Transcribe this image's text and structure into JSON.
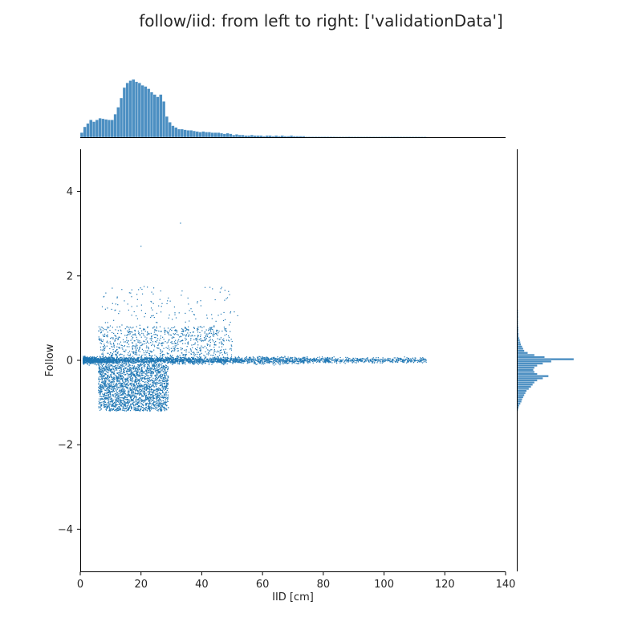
{
  "chart_data": {
    "type": "scatter",
    "title": "follow/iid: from left to right: ['validationData']",
    "xlabel": "IID [cm]",
    "ylabel": "Follow",
    "xlim": [
      0,
      140
    ],
    "ylim": [
      -5,
      5
    ],
    "x_ticks": [
      0,
      20,
      40,
      60,
      80,
      100,
      120,
      140
    ],
    "y_ticks": [
      -4,
      -2,
      0,
      2,
      4
    ],
    "x_tick_labels": [
      "0",
      "20",
      "40",
      "60",
      "80",
      "100",
      "120",
      "140"
    ],
    "y_tick_labels": [
      "−4",
      "−2",
      "0",
      "2",
      "4"
    ],
    "grid": false,
    "color": "#1f77b4",
    "marginal_x_histogram": {
      "bin_width": 1,
      "counts": [
        0.08,
        0.18,
        0.24,
        0.3,
        0.27,
        0.3,
        0.33,
        0.32,
        0.31,
        0.3,
        0.3,
        0.4,
        0.52,
        0.68,
        0.86,
        0.94,
        0.98,
        1.0,
        0.96,
        0.94,
        0.9,
        0.88,
        0.84,
        0.78,
        0.74,
        0.7,
        0.74,
        0.62,
        0.36,
        0.26,
        0.2,
        0.17,
        0.14,
        0.14,
        0.13,
        0.12,
        0.12,
        0.11,
        0.1,
        0.09,
        0.1,
        0.09,
        0.09,
        0.08,
        0.08,
        0.08,
        0.07,
        0.06,
        0.07,
        0.06,
        0.04,
        0.05,
        0.04,
        0.04,
        0.03,
        0.03,
        0.04,
        0.03,
        0.03,
        0.03,
        0.02,
        0.03,
        0.03,
        0.02,
        0.03,
        0.02,
        0.03,
        0.02,
        0.02,
        0.03,
        0.02,
        0.02,
        0.02,
        0.02,
        0.01,
        0.01,
        0.01,
        0.01,
        0.01,
        0.01,
        0.01,
        0.01,
        0.01,
        0.01,
        0.005,
        0.005,
        0.005,
        0.005,
        0.01,
        0.005,
        0.005,
        0.004,
        0.004,
        0.004,
        0.004,
        0.004,
        0.003,
        0.003,
        0.003,
        0.003,
        0.003,
        0.003,
        0.003,
        0.003,
        0.003,
        0.003,
        0.003,
        0.002,
        0.002,
        0.002,
        0.002,
        0.002,
        0.002,
        0.008
      ]
    },
    "marginal_y_histogram": {
      "y_start": 1.2,
      "bin_width": 0.05,
      "counts": [
        0.01,
        0.01,
        0.01,
        0.01,
        0.01,
        0.01,
        0.01,
        0.01,
        0.015,
        0.015,
        0.015,
        0.02,
        0.02,
        0.03,
        0.04,
        0.05,
        0.06,
        0.08,
        0.1,
        0.12,
        0.18,
        0.3,
        0.48,
        1.0,
        0.6,
        0.45,
        0.35,
        0.3,
        0.28,
        0.3,
        0.35,
        0.55,
        0.45,
        0.35,
        0.3,
        0.27,
        0.24,
        0.2,
        0.16,
        0.14,
        0.12,
        0.1,
        0.08,
        0.07,
        0.05,
        0.03,
        0.02,
        0.01
      ]
    },
    "clusters": [
      {
        "name": "main-band",
        "x_range": [
          1,
          75
        ],
        "y_center": 0.0,
        "y_spread": 0.08,
        "density": 1.0
      },
      {
        "name": "negative-block",
        "x_range": [
          6,
          29
        ],
        "y_range": [
          -1.2,
          -0.1
        ],
        "density": 0.9
      },
      {
        "name": "positive-scatter",
        "x_range": [
          6,
          50
        ],
        "y_range": [
          0.1,
          0.8
        ],
        "density": 0.3
      },
      {
        "name": "sparse-upper",
        "x_range": [
          7,
          52
        ],
        "y_range": [
          0.8,
          1.75
        ],
        "density": 0.05
      },
      {
        "name": "far-tail",
        "x_range": [
          75,
          114
        ],
        "y_center": 0.0,
        "y_spread": 0.06,
        "density": 0.2
      }
    ],
    "outliers": [
      {
        "x": 33,
        "y": 3.25
      },
      {
        "x": 20,
        "y": 2.7
      }
    ]
  }
}
